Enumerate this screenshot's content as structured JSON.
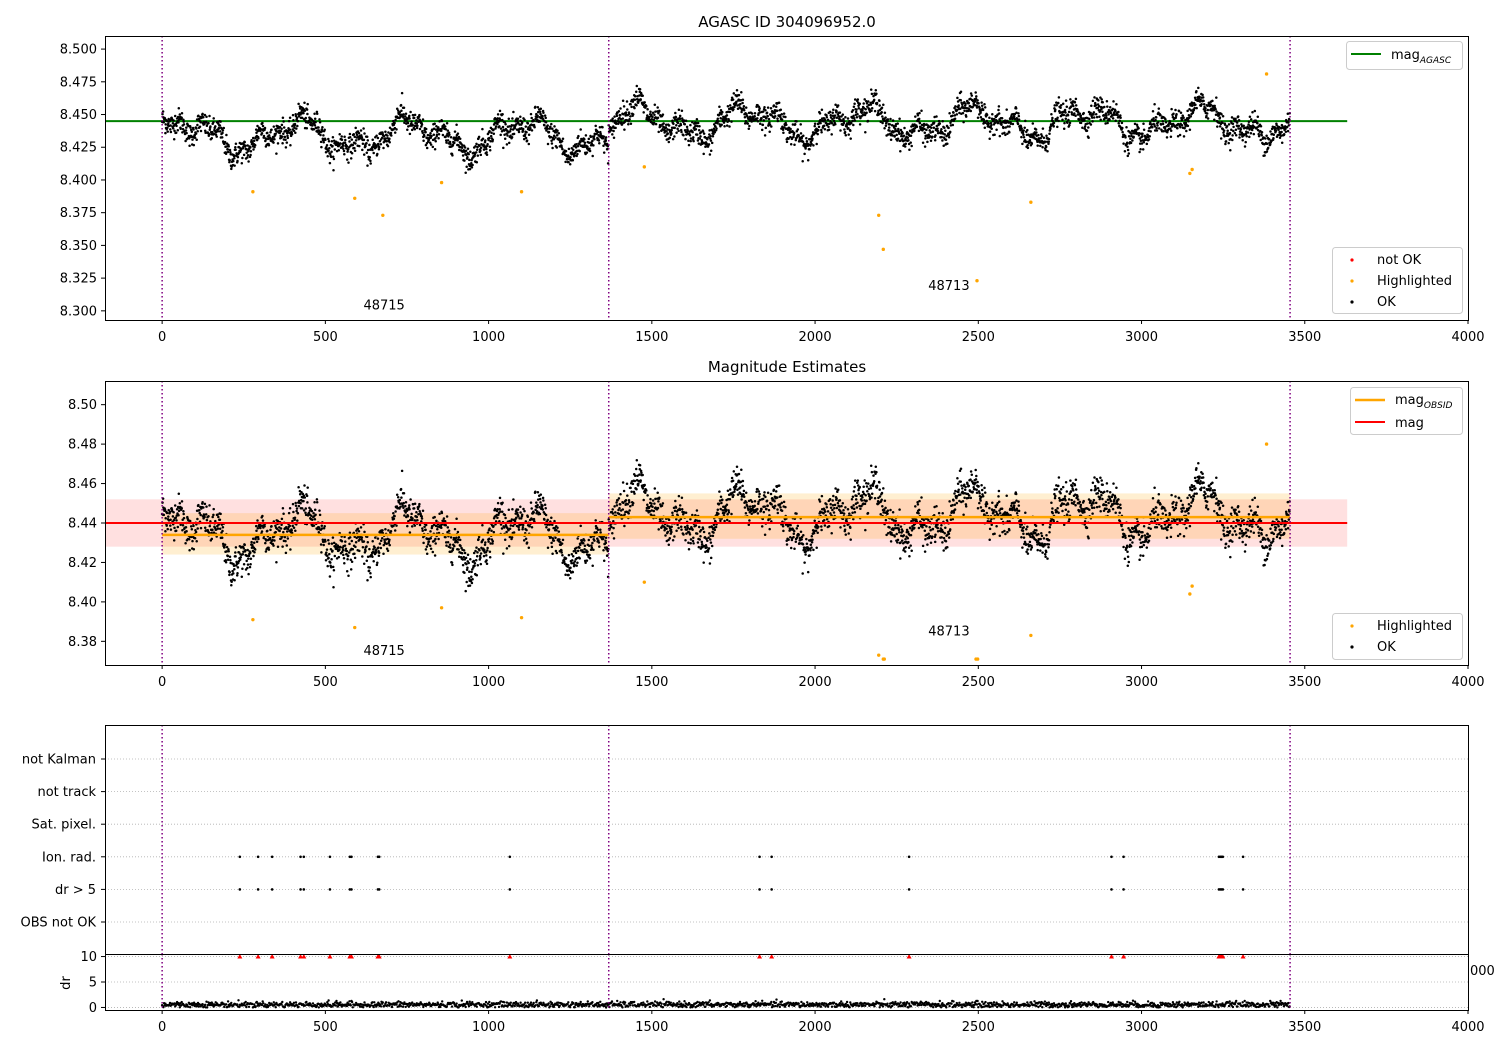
{
  "colors": {
    "ok": "#000000",
    "highlighted": "#ffa500",
    "not_ok": "#ff0000",
    "agasc_line": "#008000",
    "mag_line": "#ff0000",
    "obsid_line": "#ffa500",
    "obs_boundary": "#800080",
    "grid": "#b0b0b0"
  },
  "chart_data": [
    {
      "type": "scatter",
      "title": "AGASC ID 304096952.0",
      "xlim": [
        -175,
        4000
      ],
      "ylim": [
        8.293,
        8.51
      ],
      "x_ticks": [
        "0",
        "500",
        "1000",
        "1500",
        "2000",
        "2500",
        "3000",
        "3500",
        "4000"
      ],
      "y_ticks": [
        "8.300",
        "8.325",
        "8.350",
        "8.375",
        "8.400",
        "8.425",
        "8.450",
        "8.475",
        "8.500"
      ],
      "obs_boundaries": [
        0,
        1368,
        3455
      ],
      "obs_labels": [
        {
          "text": "48715",
          "x": 680,
          "y": 8.304
        },
        {
          "text": "48713",
          "x": 2410,
          "y": 8.319
        }
      ],
      "mag_agasc": {
        "value": 8.445,
        "x_range": [
          -175,
          3630
        ]
      },
      "highlighted": [
        [
          278,
          8.391
        ],
        [
          590,
          8.386
        ],
        [
          676,
          8.373
        ],
        [
          856,
          8.398
        ],
        [
          1101,
          8.391
        ],
        [
          1477,
          8.41
        ],
        [
          2195,
          8.373
        ],
        [
          2209,
          8.347
        ],
        [
          2496,
          8.323
        ],
        [
          2661,
          8.383
        ],
        [
          3148,
          8.405
        ],
        [
          3155,
          8.408
        ],
        [
          3383,
          8.481
        ]
      ],
      "legend_top": {
        "position": "upper right",
        "entries": [
          {
            "label": "mag",
            "sub": "AGASC"
          }
        ]
      },
      "legend_bottom": {
        "position": "lower right",
        "entries": [
          {
            "label": "not OK",
            "color": "#ff0000"
          },
          {
            "label": "Highlighted",
            "color": "#ffa500"
          },
          {
            "label": "OK",
            "color": "#000000"
          }
        ]
      }
    },
    {
      "type": "scatter",
      "title": "Magnitude Estimates",
      "xlim": [
        -175,
        4000
      ],
      "ylim": [
        8.368,
        8.512
      ],
      "x_ticks": [
        "0",
        "500",
        "1000",
        "1500",
        "2000",
        "2500",
        "3000",
        "3500",
        "4000"
      ],
      "y_ticks": [
        "8.38",
        "8.40",
        "8.42",
        "8.44",
        "8.46",
        "8.48",
        "8.50"
      ],
      "obs_boundaries": [
        0,
        1368,
        3455
      ],
      "obs_labels": [
        {
          "text": "48715",
          "x": 680,
          "y": 8.375
        },
        {
          "text": "48713",
          "x": 2410,
          "y": 8.385
        }
      ],
      "mag": {
        "value": 8.44,
        "band": [
          8.428,
          8.452
        ],
        "x_range": [
          -175,
          3630
        ]
      },
      "mag_obsid": [
        {
          "value": 8.434,
          "band": [
            8.424,
            8.445
          ],
          "x_range": [
            0,
            1368
          ]
        },
        {
          "value": 8.443,
          "band": [
            8.432,
            8.455
          ],
          "x_range": [
            1368,
            3455
          ]
        }
      ],
      "highlighted": [
        [
          278,
          8.391
        ],
        [
          590,
          8.387
        ],
        [
          856,
          8.397
        ],
        [
          1101,
          8.392
        ],
        [
          1477,
          8.41
        ],
        [
          2195,
          8.373
        ],
        [
          2209,
          8.371
        ],
        [
          2212,
          8.371
        ],
        [
          2493,
          8.371
        ],
        [
          2498,
          8.371
        ],
        [
          2661,
          8.383
        ],
        [
          3148,
          8.404
        ],
        [
          3155,
          8.408
        ],
        [
          3383,
          8.48
        ]
      ],
      "legend_top": {
        "position": "upper right",
        "entries": [
          {
            "label": "mag",
            "sub": "OBSID",
            "color": "#ffa500"
          },
          {
            "label": "mag",
            "color": "#ff0000"
          }
        ]
      },
      "legend_bottom": {
        "position": "lower right",
        "entries": [
          {
            "label": "Highlighted",
            "color": "#ffa500"
          },
          {
            "label": "OK",
            "color": "#000000"
          }
        ]
      }
    },
    {
      "type": "scatter",
      "title": "",
      "xlim": [
        -175,
        4000
      ],
      "categories": [
        "not Kalman",
        "not track",
        "Sat. pixel.",
        "Ion. rad.",
        "dr > 5",
        "OBS not OK"
      ],
      "obs_boundaries": [
        0,
        1368,
        3455
      ],
      "flag_x": [
        238,
        294,
        337,
        424,
        434,
        514,
        575,
        580,
        661,
        665,
        1065,
        1830,
        1867,
        2288,
        2908,
        2945,
        3237,
        3241,
        3245,
        3249,
        3311
      ],
      "flag_categories": [
        "Ion. rad.",
        "dr > 5"
      ]
    },
    {
      "type": "scatter",
      "title": "",
      "xlim": [
        -175,
        4000
      ],
      "ylim": [
        -0.5,
        10.5
      ],
      "ylabel": "dr",
      "x_ticks": [
        "0",
        "500",
        "1000",
        "1500",
        "2000",
        "2500",
        "3000",
        "3500",
        "4000"
      ],
      "y_ticks": [
        "0",
        "5",
        "10"
      ],
      "clipped_tick": "000",
      "obs_boundaries": [
        0,
        1368,
        3455
      ],
      "outlier_value": 10,
      "outlier_x": [
        238,
        294,
        337,
        424,
        434,
        514,
        575,
        580,
        661,
        665,
        1065,
        1830,
        1867,
        2288,
        2908,
        2945,
        3237,
        3241,
        3245,
        3249,
        3311
      ],
      "n_points": 3455
    }
  ]
}
